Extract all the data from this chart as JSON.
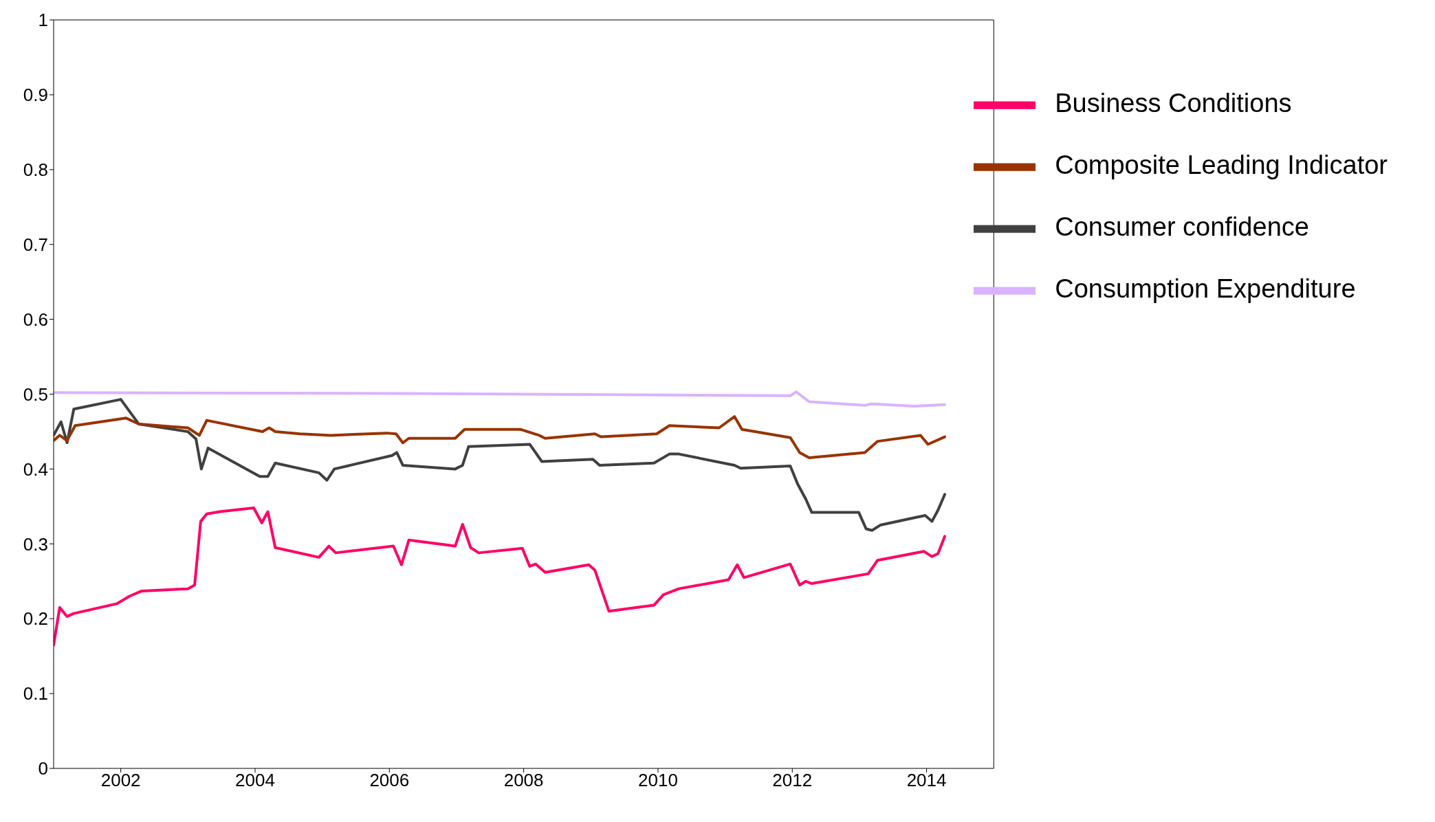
{
  "chart_data": {
    "type": "line",
    "xlim": [
      2001,
      2015
    ],
    "xticks": [
      2002,
      2004,
      2006,
      2008,
      2010,
      2012,
      2014
    ],
    "ylim": [
      0,
      1
    ],
    "yticks": [
      0,
      {
        "value": 0.1,
        "label": "0.1"
      },
      {
        "value": 0.2,
        "label": "0.2"
      },
      {
        "value": 0.3,
        "label": "0.3"
      },
      {
        "value": 0.4,
        "label": "0.4"
      },
      {
        "value": 0.5,
        "label": "0.5"
      },
      {
        "value": 0.6,
        "label": "0.6"
      },
      {
        "value": 0.7,
        "label": "0.7"
      },
      {
        "value": 0.8,
        "label": "0.8"
      },
      {
        "value": 0.9,
        "label": "0.9"
      },
      1
    ],
    "grid": false,
    "legend": "top right",
    "marker": "none",
    "line_style": "solid",
    "series": [
      {
        "name": "Consumer confidence",
        "color": "#404040",
        "x": [
          2001.0,
          2001.11,
          2001.2,
          2001.3,
          2002.0,
          2002.27,
          2003.0,
          2003.12,
          2003.2,
          2003.3,
          2004.07,
          2004.19,
          2004.3,
          2004.95,
          2005.07,
          2005.18,
          2006.04,
          2006.11,
          2006.2,
          2006.98,
          2007.09,
          2007.18,
          2008.09,
          2008.27,
          2009.03,
          2009.13,
          2009.94,
          2010.17,
          2010.31,
          2011.14,
          2011.23,
          2011.97,
          2012.08,
          2012.2,
          2012.29,
          2012.99,
          2013.1,
          2013.19,
          2013.31,
          2013.82,
          2013.98,
          2014.08,
          2014.17,
          2014.27
        ],
        "values": [
          0.445,
          0.463,
          0.435,
          0.48,
          0.493,
          0.46,
          0.45,
          0.44,
          0.4,
          0.428,
          0.39,
          0.39,
          0.408,
          0.395,
          0.385,
          0.4,
          0.418,
          0.422,
          0.405,
          0.4,
          0.405,
          0.43,
          0.433,
          0.41,
          0.413,
          0.405,
          0.408,
          0.42,
          0.42,
          0.405,
          0.401,
          0.404,
          0.38,
          0.36,
          0.342,
          0.342,
          0.32,
          0.318,
          0.325,
          0.335,
          0.338,
          0.33,
          0.345,
          0.366
        ]
      },
      {
        "name": "Business Conditions",
        "color": "#ff0066",
        "x": [
          2001.0,
          2001.09,
          2001.2,
          2001.3,
          2001.94,
          2002.13,
          2002.31,
          2003.0,
          2003.1,
          2003.19,
          2003.28,
          2003.47,
          2003.98,
          2004.1,
          2004.19,
          2004.3,
          2004.95,
          2005.1,
          2005.2,
          2006.06,
          2006.18,
          2006.29,
          2006.98,
          2007.09,
          2007.21,
          2007.33,
          2007.98,
          2008.09,
          2008.18,
          2008.32,
          2008.97,
          2009.06,
          2009.27,
          2009.94,
          2010.08,
          2010.31,
          2011.05,
          2011.18,
          2011.28,
          2011.97,
          2012.11,
          2012.2,
          2012.29,
          2013.13,
          2013.27,
          2013.96,
          2014.08,
          2014.17,
          2014.27
        ],
        "values": [
          0.165,
          0.215,
          0.203,
          0.207,
          0.22,
          0.23,
          0.237,
          0.24,
          0.245,
          0.33,
          0.34,
          0.343,
          0.348,
          0.328,
          0.343,
          0.295,
          0.282,
          0.297,
          0.288,
          0.297,
          0.272,
          0.305,
          0.297,
          0.326,
          0.295,
          0.288,
          0.294,
          0.27,
          0.273,
          0.262,
          0.272,
          0.265,
          0.21,
          0.218,
          0.232,
          0.24,
          0.252,
          0.272,
          0.255,
          0.273,
          0.245,
          0.25,
          0.247,
          0.26,
          0.278,
          0.29,
          0.283,
          0.287,
          0.31
        ]
      },
      {
        "name": "Composite Leading Indicator",
        "color": "#993300",
        "x": [
          2001.0,
          2001.09,
          2001.2,
          2001.32,
          2002.08,
          2002.27,
          2003.0,
          2003.17,
          2003.28,
          2004.11,
          2004.21,
          2004.3,
          2004.67,
          2005.13,
          2005.96,
          2006.1,
          2006.2,
          2006.29,
          2006.98,
          2007.12,
          2007.95,
          2008.23,
          2008.32,
          2009.06,
          2009.15,
          2009.98,
          2010.17,
          2010.91,
          2011.14,
          2011.25,
          2011.97,
          2012.11,
          2012.25,
          2013.08,
          2013.27,
          2013.91,
          2014.02,
          2014.27
        ],
        "values": [
          0.438,
          0.445,
          0.438,
          0.458,
          0.468,
          0.46,
          0.455,
          0.445,
          0.465,
          0.45,
          0.455,
          0.45,
          0.447,
          0.445,
          0.448,
          0.447,
          0.435,
          0.441,
          0.441,
          0.453,
          0.453,
          0.445,
          0.441,
          0.447,
          0.443,
          0.447,
          0.458,
          0.455,
          0.47,
          0.453,
          0.442,
          0.422,
          0.415,
          0.422,
          0.437,
          0.445,
          0.433,
          0.443
        ]
      },
      {
        "name": "Consumption Expenditure",
        "color": "#d9b3ff",
        "x": [
          2001.0,
          2006.05,
          2011.97,
          2012.06,
          2012.25,
          2013.08,
          2013.17,
          2013.82,
          2014.27
        ],
        "values": [
          0.502,
          0.501,
          0.498,
          0.503,
          0.49,
          0.485,
          0.487,
          0.484,
          0.486
        ]
      }
    ]
  }
}
